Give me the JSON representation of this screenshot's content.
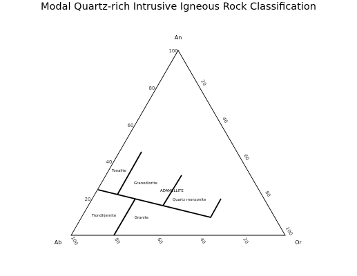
{
  "title": "Modal Quartz-rich Intrusive Igneous Rock Classification",
  "corners": {
    "top": "An",
    "left": "Ab",
    "right": "Or"
  },
  "ticks": {
    "left_edge": [
      "20",
      "40",
      "60",
      "80",
      "100"
    ],
    "right_edge": [
      "20",
      "40",
      "60",
      "80",
      "100"
    ],
    "bottom_edge": [
      "100",
      "80",
      "60",
      "40",
      "20"
    ]
  },
  "fields": [
    {
      "key": "tonalite",
      "label": "Tonalite"
    },
    {
      "key": "granodiorite",
      "label": "Granodiorite"
    },
    {
      "key": "adamellite",
      "label": "ADAMELLITE"
    },
    {
      "key": "quartz-monzonite",
      "label": "Quartz monzonite"
    },
    {
      "key": "trondhjemite",
      "label": "Trondhjemite"
    },
    {
      "key": "granite",
      "label": "Granite"
    }
  ]
}
